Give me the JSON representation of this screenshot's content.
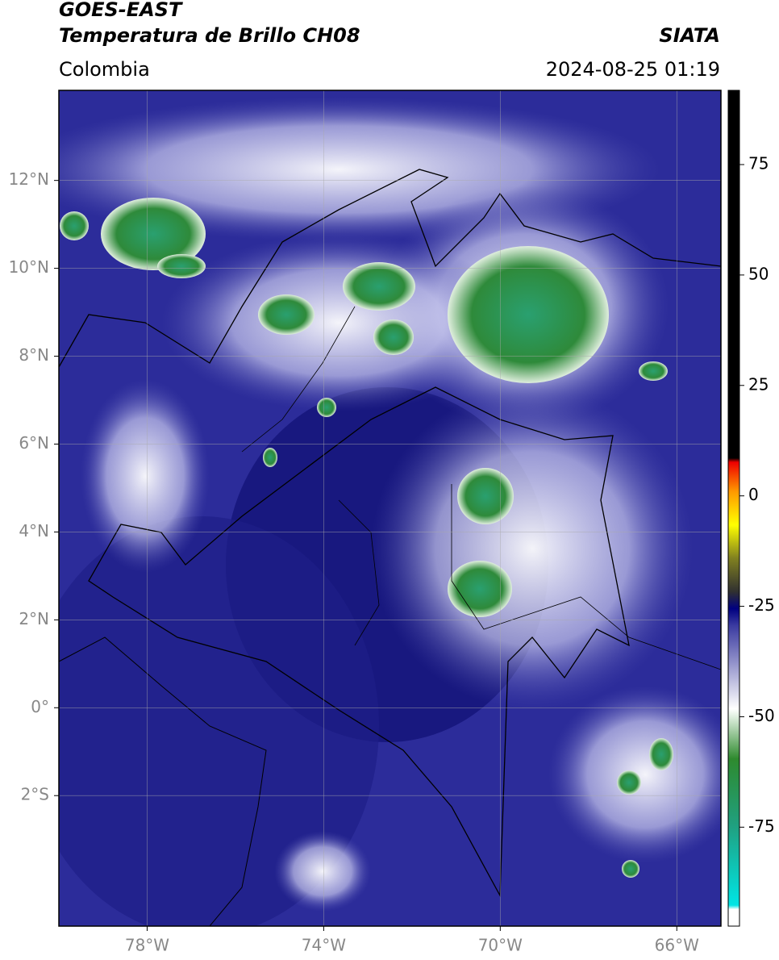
{
  "header": {
    "title_line1": "GOES-EAST",
    "title_line2": "Temperatura de Brillo CH08",
    "source": "SIATA",
    "region": "Colombia",
    "datetime": "2024-08-25 01:19"
  },
  "map": {
    "xlim": [
      -80,
      -65
    ],
    "ylim": [
      -4.97,
      14.05
    ],
    "xticks": [
      {
        "value": -78,
        "label": "78°W"
      },
      {
        "value": -74,
        "label": "74°W"
      },
      {
        "value": -70,
        "label": "70°W"
      },
      {
        "value": -66,
        "label": "66°W"
      }
    ],
    "yticks": [
      {
        "value": 12,
        "label": "12°N"
      },
      {
        "value": 10,
        "label": "10°N"
      },
      {
        "value": 8,
        "label": "8°N"
      },
      {
        "value": 6,
        "label": "6°N"
      },
      {
        "value": 4,
        "label": "4°N"
      },
      {
        "value": 2,
        "label": "2°N"
      },
      {
        "value": 0,
        "label": "0°"
      },
      {
        "value": -2,
        "label": "2°S"
      }
    ],
    "grid": true
  },
  "colorbar": {
    "lim": [
      -97.4,
      91.8
    ],
    "ticks": [
      75,
      50,
      25,
      0,
      -25,
      -50,
      -75
    ]
  }
}
